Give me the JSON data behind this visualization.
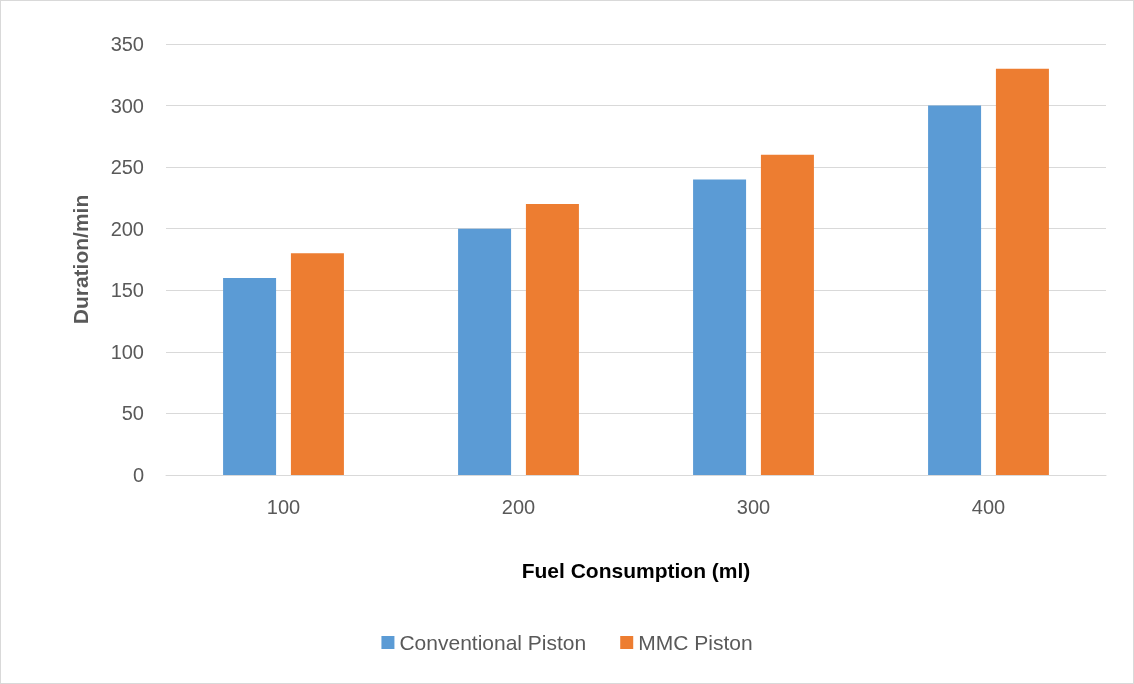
{
  "chart_data": {
    "type": "bar",
    "xlabel": "Fuel Consumption (ml)",
    "ylabel": "Duration/min",
    "categories": [
      "100",
      "200",
      "300",
      "400"
    ],
    "series": [
      {
        "name": "Conventional Piston",
        "color": "#5b9bd5",
        "values": [
          160,
          200,
          240,
          300
        ]
      },
      {
        "name": "MMC Piston",
        "color": "#ed7d31",
        "values": [
          180,
          220,
          260,
          330
        ]
      }
    ],
    "ylim": [
      0,
      350
    ],
    "yticks": [
      0,
      50,
      100,
      150,
      200,
      250,
      300,
      350
    ],
    "grid": "y",
    "legend": "bottom"
  }
}
